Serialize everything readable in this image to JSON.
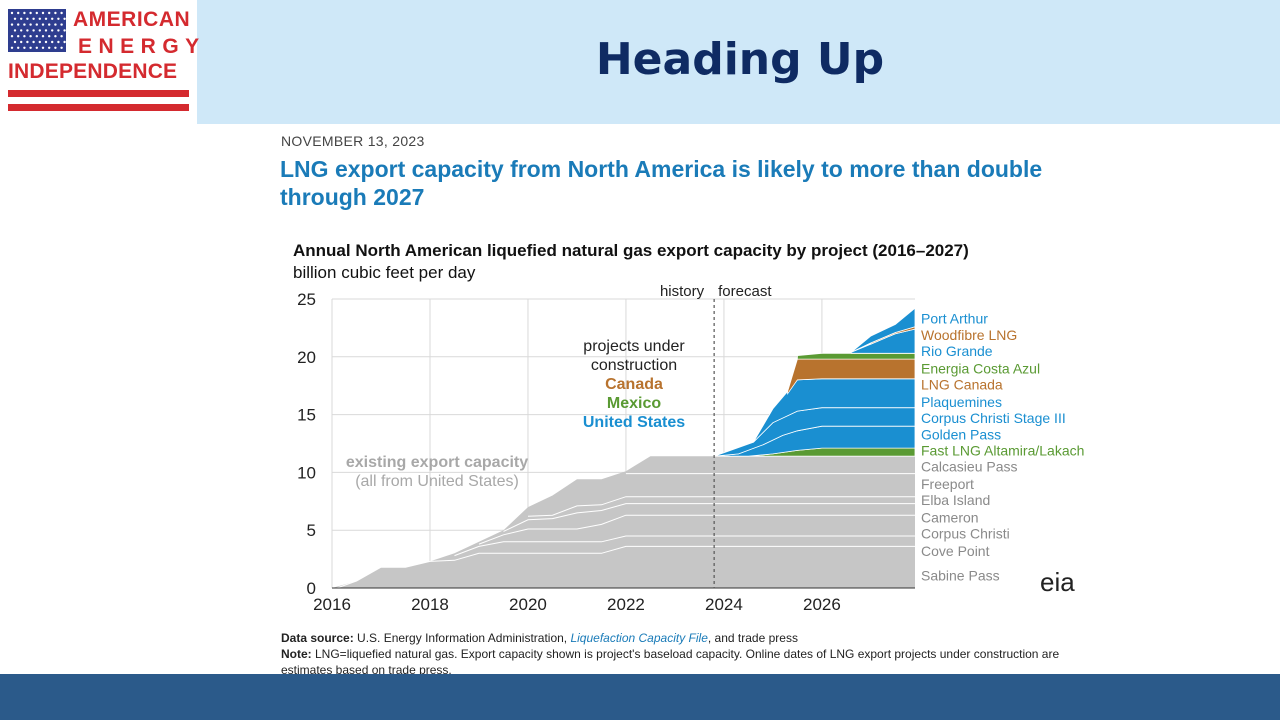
{
  "logo": {
    "line1": "AMERICAN",
    "line2": "ENERGY",
    "line3": "INDEPENDENCE"
  },
  "slide": {
    "title": "Heading Up"
  },
  "article": {
    "date": "NOVEMBER 13, 2023",
    "title": "LNG export capacity from North America is likely to more than double through 2027"
  },
  "colors": {
    "existing": "#c6c6c6",
    "us": "#1a8fd1",
    "canada": "#b8732e",
    "mexico": "#5a9a33",
    "header_bg": "#cfe8f8",
    "title_blue": "#0f2b63",
    "bottom_bar": "#2b5a8a"
  },
  "chart_data": {
    "type": "area",
    "title": "Annual North American liquefied natural gas export capacity by project (2016–2027)",
    "ylabel": "billion cubic feet per day",
    "xlim": [
      2016,
      2027.9
    ],
    "ylim": [
      0,
      25
    ],
    "x_ticks": [
      "2016",
      "2018",
      "2020",
      "2022",
      "2024",
      "2026"
    ],
    "y_ticks": [
      "0",
      "5",
      "10",
      "15",
      "20",
      "25"
    ],
    "grid": true,
    "divider_x": 2023.8,
    "history_label": "history",
    "forecast_label": "forecast",
    "existing_label_1": "existing export capacity",
    "existing_label_2": "(all from United States)",
    "construction_label_1": "projects under",
    "construction_label_2": "construction",
    "construction_canada": "Canada",
    "construction_mexico": "Mexico",
    "construction_us": "United States",
    "existing_lines": [
      [
        [
          2016.1,
          0
        ],
        [
          2016.5,
          0.6
        ],
        [
          2017,
          1.8
        ],
        [
          2017.5,
          1.8
        ],
        [
          2018,
          2.3
        ],
        [
          2018.5,
          2.4
        ],
        [
          2019,
          3.0
        ],
        [
          2021.5,
          3.0
        ],
        [
          2022,
          3.6
        ],
        [
          2027.9,
          3.6
        ]
      ],
      [
        [
          2018.5,
          2.8
        ],
        [
          2019,
          3.6
        ],
        [
          2019.5,
          4.0
        ],
        [
          2021.5,
          4.0
        ],
        [
          2022,
          4.5
        ],
        [
          2027.9,
          4.5
        ]
      ],
      [
        [
          2019,
          3.8
        ],
        [
          2019.5,
          4.6
        ],
        [
          2020,
          5.1
        ],
        [
          2021,
          5.1
        ],
        [
          2021.5,
          5.5
        ],
        [
          2022,
          6.3
        ],
        [
          2027.9,
          6.3
        ]
      ],
      [
        [
          2019.5,
          4.9
        ],
        [
          2020,
          5.9
        ],
        [
          2020.5,
          6.0
        ],
        [
          2021,
          6.5
        ],
        [
          2021.5,
          6.7
        ],
        [
          2022,
          7.3
        ],
        [
          2027.9,
          7.3
        ]
      ],
      [
        [
          2020,
          6.2
        ],
        [
          2020.5,
          6.3
        ],
        [
          2021,
          7.1
        ],
        [
          2021.5,
          7.2
        ],
        [
          2022,
          7.9
        ],
        [
          2027.9,
          7.9
        ]
      ],
      [
        [
          2022,
          9.9
        ],
        [
          2027.9,
          9.9
        ]
      ]
    ],
    "existing_top": [
      [
        2016,
        0
      ],
      [
        2016.5,
        0.6
      ],
      [
        2017,
        1.8
      ],
      [
        2017.5,
        1.8
      ],
      [
        2018,
        2.3
      ],
      [
        2018.5,
        3.0
      ],
      [
        2019,
        4.0
      ],
      [
        2019.5,
        5.0
      ],
      [
        2020,
        7.0
      ],
      [
        2020.5,
        8.0
      ],
      [
        2021,
        9.4
      ],
      [
        2021.5,
        9.4
      ],
      [
        2022,
        10.1
      ],
      [
        2022.5,
        11.4
      ],
      [
        2027.9,
        11.4
      ]
    ],
    "forecast_layers": [
      {
        "name": "Fast LNG Altamira/Lakach",
        "color": "mexico",
        "lower": [
          [
            2024,
            11.4
          ],
          [
            2025.5,
            11.4
          ],
          [
            2026,
            11.4
          ],
          [
            2027.9,
            11.4
          ]
        ],
        "upper": [
          [
            2024,
            11.4
          ],
          [
            2024.5,
            11.4
          ],
          [
            2025,
            11.6
          ],
          [
            2025.5,
            11.9
          ],
          [
            2026,
            12.1
          ],
          [
            2027.9,
            12.1
          ]
        ]
      },
      {
        "name": "Golden Pass",
        "color": "us",
        "lower": [
          [
            2024,
            11.4
          ],
          [
            2024.5,
            11.4
          ],
          [
            2025,
            11.6
          ],
          [
            2025.5,
            11.9
          ],
          [
            2026,
            12.1
          ],
          [
            2027.9,
            12.1
          ]
        ],
        "upper": [
          [
            2023.8,
            11.4
          ],
          [
            2024.3,
            11.6
          ],
          [
            2024.8,
            12.4
          ],
          [
            2025.2,
            13.2
          ],
          [
            2025.5,
            13.6
          ],
          [
            2026,
            14.0
          ],
          [
            2027.9,
            14.0
          ]
        ]
      },
      {
        "name": "Corpus Christi Stage III",
        "color": "us",
        "lower": [
          [
            2023.8,
            11.4
          ],
          [
            2024.3,
            11.6
          ],
          [
            2024.8,
            12.4
          ],
          [
            2025.2,
            13.2
          ],
          [
            2025.5,
            13.6
          ],
          [
            2026,
            14.0
          ],
          [
            2027.9,
            14.0
          ]
        ],
        "upper": [
          [
            2024.6,
            12.6
          ],
          [
            2025,
            14.3
          ],
          [
            2025.5,
            15.3
          ],
          [
            2026,
            15.6
          ],
          [
            2027.9,
            15.6
          ]
        ]
      },
      {
        "name": "Plaquemines",
        "color": "us",
        "lower": [
          [
            2024.6,
            12.6
          ],
          [
            2025,
            14.3
          ],
          [
            2025.5,
            15.3
          ],
          [
            2026,
            15.6
          ],
          [
            2027.9,
            15.6
          ]
        ],
        "upper": [
          [
            2024.6,
            12.6
          ],
          [
            2025,
            15.5
          ],
          [
            2025.5,
            18.0
          ],
          [
            2026,
            18.1
          ],
          [
            2027.9,
            18.1
          ]
        ]
      },
      {
        "name": "LNG Canada",
        "color": "canada",
        "lower": [
          [
            2025.3,
            16.8
          ],
          [
            2025.5,
            18.0
          ],
          [
            2026,
            18.1
          ],
          [
            2027.9,
            18.1
          ]
        ],
        "upper": [
          [
            2025.3,
            17.0
          ],
          [
            2025.5,
            19.8
          ],
          [
            2026,
            19.8
          ],
          [
            2027.9,
            19.8
          ]
        ]
      },
      {
        "name": "Energia Costa Azul",
        "color": "mexico",
        "lower": [
          [
            2025.5,
            19.8
          ],
          [
            2026,
            19.8
          ],
          [
            2027.9,
            19.8
          ]
        ],
        "upper": [
          [
            2025.5,
            20.1
          ],
          [
            2026,
            20.3
          ],
          [
            2027.9,
            20.3
          ]
        ]
      },
      {
        "name": "Rio Grande",
        "color": "us",
        "lower": [
          [
            2026.6,
            20.3
          ],
          [
            2027.9,
            20.3
          ]
        ],
        "upper": [
          [
            2026.6,
            20.4
          ],
          [
            2027,
            21.1
          ],
          [
            2027.5,
            22.0
          ],
          [
            2027.9,
            22.4
          ]
        ]
      },
      {
        "name": "Woodfibre LNG",
        "color": "canada",
        "lower": [
          [
            2027,
            21.1
          ],
          [
            2027.5,
            22.0
          ],
          [
            2027.9,
            22.4
          ]
        ],
        "upper": [
          [
            2027,
            21.2
          ],
          [
            2027.5,
            22.1
          ],
          [
            2027.9,
            22.6
          ]
        ]
      },
      {
        "name": "Port Arthur",
        "color": "us",
        "lower": [
          [
            2026.6,
            20.4
          ],
          [
            2027,
            21.2
          ],
          [
            2027.5,
            22.1
          ],
          [
            2027.9,
            22.6
          ]
        ],
        "upper": [
          [
            2026.6,
            20.4
          ],
          [
            2027,
            21.8
          ],
          [
            2027.5,
            22.8
          ],
          [
            2027.9,
            24.2
          ]
        ]
      }
    ],
    "right_labels": [
      {
        "text": "Port Arthur",
        "color": "us",
        "y": 23.3
      },
      {
        "text": "Woodfibre LNG",
        "color": "canada",
        "y": 21.9
      },
      {
        "text": "Rio Grande",
        "color": "us",
        "y": 20.5
      },
      {
        "text": "Energia Costa Azul",
        "color": "mexico",
        "y": 19.0
      },
      {
        "text": "LNG Canada",
        "color": "canada",
        "y": 17.6
      },
      {
        "text": "Plaquemines",
        "color": "us",
        "y": 16.1
      },
      {
        "text": "Corpus Christi Stage III",
        "color": "us",
        "y": 14.7
      },
      {
        "text": "Golden Pass",
        "color": "us",
        "y": 13.3
      },
      {
        "text": "Fast LNG Altamira/Lakach",
        "color": "mexico",
        "y": 11.9
      },
      {
        "text": "Calcasieu Pass",
        "color": "gray",
        "y": 10.5
      },
      {
        "text": "Freeport",
        "color": "gray",
        "y": 9.0
      },
      {
        "text": "Elba Island",
        "color": "gray",
        "y": 7.6
      },
      {
        "text": "Cameron",
        "color": "gray",
        "y": 6.1
      },
      {
        "text": "Corpus Christi",
        "color": "gray",
        "y": 4.7
      },
      {
        "text": "Cove Point",
        "color": "gray",
        "y": 3.2
      },
      {
        "text": "Sabine Pass",
        "color": "gray",
        "y": 1.1
      }
    ]
  },
  "footer": {
    "source_label": "Data source:",
    "source_text": " U.S. Energy Information Administration, ",
    "source_link": "Liquefaction Capacity File",
    "source_end": ", and trade press",
    "note_label": "Note:",
    "note_text": " LNG=liquefied natural gas. Export capacity shown is project's baseload capacity. Online dates of LNG export projects under construction are",
    "note_line2": "estimates based on trade press."
  },
  "eia_logo": "eia"
}
